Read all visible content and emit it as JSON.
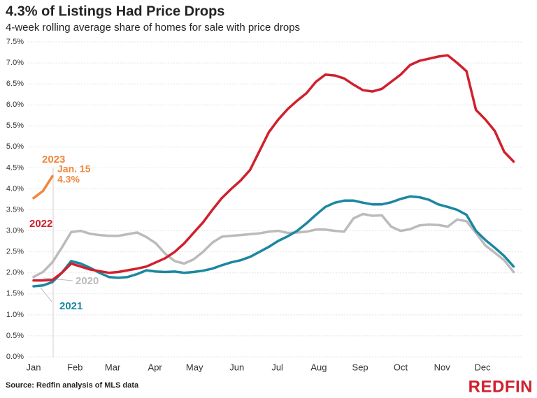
{
  "chart_data": {
    "type": "line",
    "title": "4.3% of Listings Had Price Drops",
    "subtitle": "4-week rolling average share of homes for sale with price drops",
    "source": "Source: Redfin analysis of MLS data",
    "brand": "REDFIN",
    "x": [
      0,
      1,
      2,
      3,
      4,
      5,
      6,
      7,
      8,
      9,
      10,
      11,
      12,
      13,
      14,
      15,
      16,
      17,
      18,
      19,
      20,
      21,
      22,
      23,
      24,
      25,
      26,
      27,
      28,
      29,
      30,
      31,
      32,
      33,
      34,
      35,
      36,
      37,
      38,
      39,
      40,
      41,
      42,
      43,
      44,
      45,
      46,
      47,
      48,
      49,
      50,
      51
    ],
    "xlim": [
      0,
      52
    ],
    "xticks": [
      {
        "value": 0,
        "label": "Jan"
      },
      {
        "value": 4.4,
        "label": "Feb"
      },
      {
        "value": 8.4,
        "label": "Mar"
      },
      {
        "value": 12.9,
        "label": "Apr"
      },
      {
        "value": 17.1,
        "label": "May"
      },
      {
        "value": 21.6,
        "label": "Jun"
      },
      {
        "value": 25.9,
        "label": "Jul"
      },
      {
        "value": 30.3,
        "label": "Aug"
      },
      {
        "value": 34.7,
        "label": "Sep"
      },
      {
        "value": 39,
        "label": "Oct"
      },
      {
        "value": 43.4,
        "label": "Nov"
      },
      {
        "value": 47.7,
        "label": "Dec"
      }
    ],
    "ylim": [
      0,
      7.5
    ],
    "yticks": [
      {
        "value": 0,
        "label": "0.0%"
      },
      {
        "value": 0.5,
        "label": "0.5%"
      },
      {
        "value": 1,
        "label": "1.0%"
      },
      {
        "value": 1.5,
        "label": "1.5%"
      },
      {
        "value": 2,
        "label": "2.0%"
      },
      {
        "value": 2.5,
        "label": "2.5%"
      },
      {
        "value": 3,
        "label": "3.0%"
      },
      {
        "value": 3.5,
        "label": "3.5%"
      },
      {
        "value": 4,
        "label": "4.0%"
      },
      {
        "value": 4.5,
        "label": "4.5%"
      },
      {
        "value": 5,
        "label": "5.0%"
      },
      {
        "value": 5.5,
        "label": "5.5%"
      },
      {
        "value": 6,
        "label": "6.0%"
      },
      {
        "value": 6.5,
        "label": "6.5%"
      },
      {
        "value": 7,
        "label": "7.0%"
      },
      {
        "value": 7.5,
        "label": "7.5%"
      }
    ],
    "grid": true,
    "annotations": [
      "Jan. 15",
      "4.3%"
    ],
    "series": [
      {
        "name": "2023",
        "color": "#f0883e",
        "values": [
          3.78,
          3.95,
          4.3,
          null,
          null,
          null,
          null,
          null,
          null,
          null,
          null,
          null,
          null,
          null,
          null,
          null,
          null,
          null,
          null,
          null,
          null,
          null,
          null,
          null,
          null,
          null,
          null,
          null,
          null,
          null,
          null,
          null,
          null,
          null,
          null,
          null,
          null,
          null,
          null,
          null,
          null,
          null,
          null,
          null,
          null,
          null,
          null,
          null,
          null,
          null,
          null,
          null
        ]
      },
      {
        "name": "2022",
        "color": "#d0202e",
        "values": [
          1.82,
          1.82,
          1.83,
          2.0,
          2.22,
          2.15,
          2.08,
          2.04,
          2.0,
          2.02,
          2.06,
          2.1,
          2.15,
          2.25,
          2.35,
          2.5,
          2.7,
          2.95,
          3.2,
          3.5,
          3.78,
          4.0,
          4.2,
          4.45,
          4.9,
          5.35,
          5.65,
          5.9,
          6.1,
          6.28,
          6.55,
          6.72,
          6.7,
          6.63,
          6.48,
          6.35,
          6.32,
          6.38,
          6.55,
          6.72,
          6.95,
          7.05,
          7.1,
          7.15,
          7.18,
          7.0,
          6.8,
          5.88,
          5.65,
          5.38,
          4.88,
          4.65
        ]
      },
      {
        "name": "2021",
        "color": "#1b87a0",
        "values": [
          1.68,
          1.7,
          1.78,
          2.0,
          2.28,
          2.22,
          2.12,
          2.0,
          1.9,
          1.88,
          1.9,
          1.97,
          2.06,
          2.03,
          2.02,
          2.03,
          2.0,
          2.02,
          2.05,
          2.1,
          2.18,
          2.25,
          2.3,
          2.38,
          2.5,
          2.62,
          2.76,
          2.87,
          3.0,
          3.18,
          3.38,
          3.57,
          3.67,
          3.72,
          3.72,
          3.67,
          3.63,
          3.63,
          3.68,
          3.76,
          3.82,
          3.8,
          3.74,
          3.63,
          3.57,
          3.5,
          3.38,
          3.0,
          2.78,
          2.6,
          2.4,
          2.15
        ]
      },
      {
        "name": "2020",
        "color": "#bbbbbb",
        "values": [
          1.9,
          2.02,
          2.25,
          2.6,
          2.97,
          3.0,
          2.93,
          2.9,
          2.88,
          2.88,
          2.92,
          2.96,
          2.85,
          2.7,
          2.45,
          2.28,
          2.22,
          2.32,
          2.5,
          2.72,
          2.86,
          2.88,
          2.9,
          2.92,
          2.94,
          2.98,
          3.0,
          2.95,
          2.96,
          2.98,
          3.03,
          3.03,
          3.0,
          2.98,
          3.3,
          3.4,
          3.36,
          3.37,
          3.1,
          3.0,
          3.04,
          3.13,
          3.15,
          3.14,
          3.1,
          3.27,
          3.23,
          2.95,
          2.65,
          2.48,
          2.3,
          2.02
        ]
      }
    ]
  }
}
